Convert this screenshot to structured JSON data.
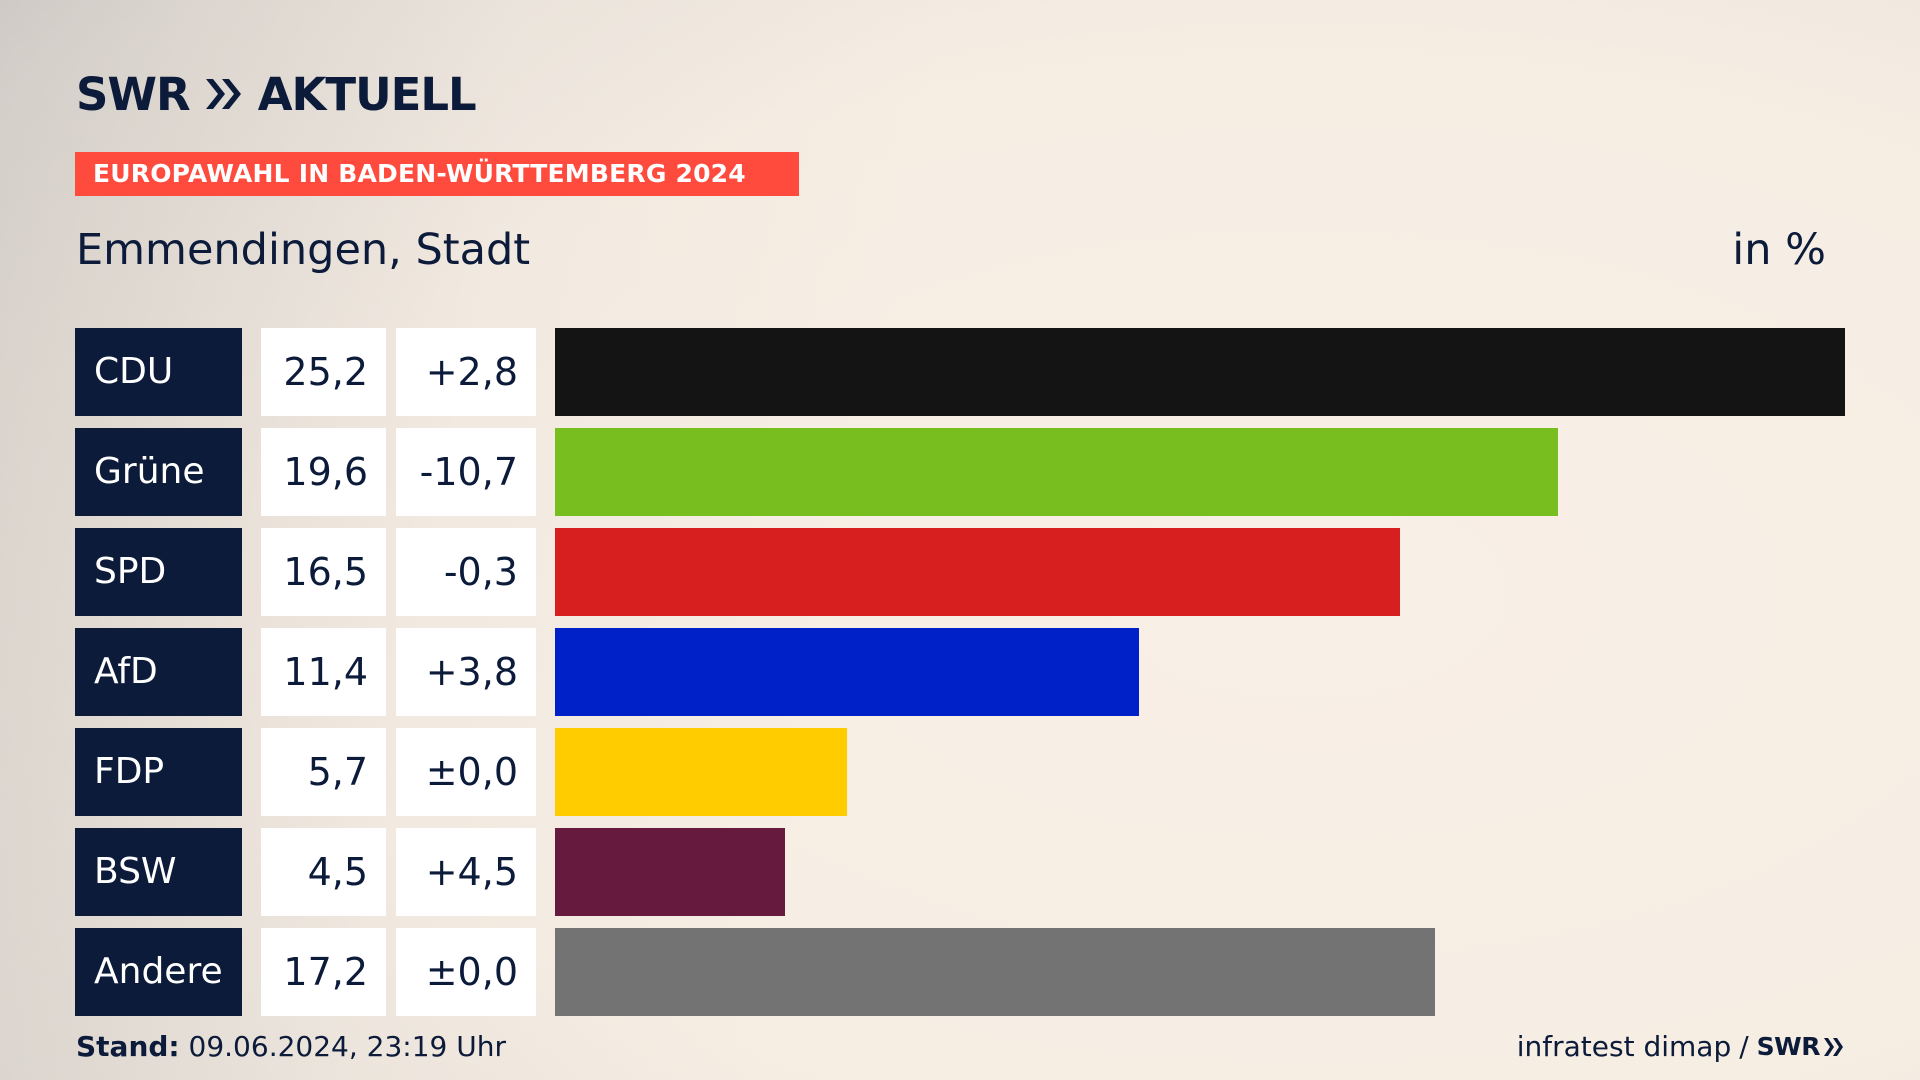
{
  "brand": {
    "logo_text": "SWR",
    "logo_suffix": "AKTUELL",
    "source": "infratest dimap",
    "separator": "/",
    "source_logo_text": "SWR"
  },
  "header": {
    "subtitle": "EUROPAWAHL IN BADEN-WÜRTTEMBERG 2024",
    "region": "Emmendingen, Stadt",
    "unit": "in %"
  },
  "footer": {
    "stand_label": "Stand:",
    "stand_value": "09.06.2024, 23:19 Uhr"
  },
  "colors": {
    "navy": "#0c1b3a",
    "accent": "#ff4b3e"
  },
  "chart_data": {
    "type": "bar",
    "orientation": "horizontal",
    "title": "Emmendingen, Stadt",
    "unit": "in %",
    "categories": [
      "CDU",
      "Grüne",
      "SPD",
      "AfD",
      "FDP",
      "BSW",
      "Andere"
    ],
    "values": [
      25.2,
      19.6,
      16.5,
      11.4,
      5.7,
      4.5,
      17.2
    ],
    "value_labels": [
      "25,2",
      "19,6",
      "16,5",
      "11,4",
      "5,7",
      "4,5",
      "17,2"
    ],
    "diff_labels": [
      "+2,8",
      "-10,7",
      "-0,3",
      "+3,8",
      "±0,0",
      "+4,5",
      "±0,0"
    ],
    "colors": [
      "#141414",
      "#78be1e",
      "#d71f1f",
      "#0021c8",
      "#ffcc00",
      "#661a3e",
      "#737373"
    ],
    "xlim": [
      0,
      25.2
    ]
  }
}
